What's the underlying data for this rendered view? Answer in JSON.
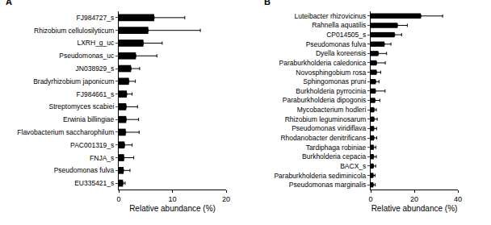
{
  "chart_data": [
    {
      "type": "bar",
      "title": "A",
      "orientation": "horizontal",
      "color": "#000000",
      "x_label": "Relative abundance (%)",
      "categories": [
        "FJ984727_s",
        "Rhizobium cellulosilyticum",
        "LXRH_g_uc",
        "Pseudomonas_uc",
        "JN038929_s",
        "Bradyrhizobium japonicum",
        "FJ984661_s",
        "Streptomyces scabiei",
        "Erwinia billingiae",
        "Flavobacterium saccharophilum",
        "PAC001319_s",
        "FNJA_s",
        "Pseudomonas fulva",
        "EU335421_s"
      ],
      "values": [
        6.6,
        5.5,
        4.6,
        3.2,
        2.3,
        1.9,
        1.5,
        1.4,
        1.4,
        1.3,
        1.1,
        1.0,
        0.9,
        0.8
      ],
      "errors": [
        5.7,
        9.7,
        3.5,
        3.9,
        1.6,
        1.2,
        1.0,
        2.1,
        2.3,
        2.5,
        1.4,
        1.8,
        1.2,
        0.4
      ],
      "xlim": [
        0,
        20
      ],
      "xticks": [
        0,
        10,
        20
      ],
      "grid": false
    },
    {
      "type": "bar",
      "title": "B",
      "orientation": "horizontal",
      "color": "#000000",
      "x_label": "Relative abundance (%)",
      "categories": [
        "Luteibacter rhizovicinus",
        "Rahnella aquatilis",
        "CP014505_s",
        "Pseudomonas fulva",
        "Dyella koreensis",
        "Paraburkholderia caledonica",
        "Novosphingobium rosa",
        "Sphingomonas pruni",
        "Burkholderia pyrrocinia",
        "Paraburkholderia dipogonis",
        "Mycobacterium hodleri",
        "Rhizobium leguminosarum",
        "Pseudomonas viridiflava",
        "Rhodanobacter denitrificans",
        "Tardiphaga robiniae",
        "Burkholderia cepacia",
        "BACX_s",
        "Paraburkholderia sediminicola",
        "Pseudomonas marginalis"
      ],
      "values": [
        23,
        12.3,
        11,
        6.3,
        3.5,
        2.7,
        2.7,
        2.3,
        2.2,
        2.0,
        1.6,
        1.6,
        1.5,
        1.5,
        1.4,
        1.4,
        1.3,
        1.2,
        1.2
      ],
      "errors": [
        10,
        4.5,
        3.2,
        3,
        3.8,
        4,
        1.9,
        1.5,
        4.4,
        2.2,
        1,
        1.4,
        1.2,
        1.3,
        1.0,
        1.2,
        1.0,
        0.8,
        0.9
      ],
      "xlim": [
        0,
        40
      ],
      "xticks": [
        0,
        20,
        40
      ],
      "grid": false
    }
  ]
}
